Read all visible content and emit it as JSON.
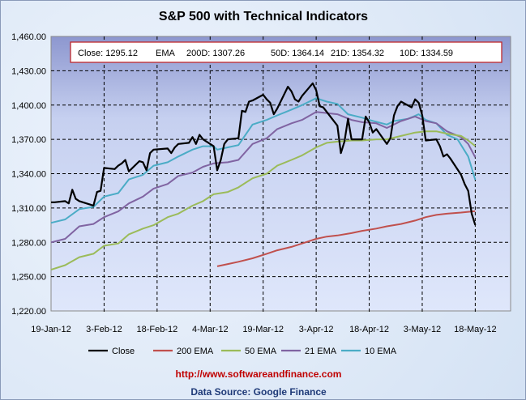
{
  "chart_data": {
    "type": "line",
    "title": "S&P 500 with Technical Indicators",
    "info_box": {
      "close": "Close: 1295.12",
      "ema": "EMA",
      "d200": "200D: 1307.26",
      "d50": "50D: 1364.14",
      "d21": "21D: 1354.32",
      "d10": "10D: 1334.59"
    },
    "ylim": [
      1220,
      1460
    ],
    "y_ticks": [
      "1,220.00",
      "1,250.00",
      "1,280.00",
      "1,310.00",
      "1,340.00",
      "1,370.00",
      "1,400.00",
      "1,430.00",
      "1,460.00"
    ],
    "x_start": "19-Jan-12",
    "x_days_range": [
      0,
      130
    ],
    "x_ticks": [
      {
        "day": 0,
        "label": "19-Jan-12"
      },
      {
        "day": 15,
        "label": "3-Feb-12"
      },
      {
        "day": 30,
        "label": "18-Feb-12"
      },
      {
        "day": 45,
        "label": "4-Mar-12"
      },
      {
        "day": 60,
        "label": "19-Mar-12"
      },
      {
        "day": 75,
        "label": "3-Apr-12"
      },
      {
        "day": 90,
        "label": "18-Apr-12"
      },
      {
        "day": 105,
        "label": "3-May-12"
      },
      {
        "day": 120,
        "label": "18-May-12"
      }
    ],
    "grid": true,
    "legend_position": "bottom",
    "series": [
      {
        "name": "Close",
        "color": "#000000",
        "points": [
          [
            0,
            1315
          ],
          [
            1,
            1315
          ],
          [
            4,
            1316
          ],
          [
            5,
            1314
          ],
          [
            6,
            1326
          ],
          [
            7,
            1318
          ],
          [
            8,
            1316
          ],
          [
            11,
            1313
          ],
          [
            12,
            1312
          ],
          [
            13,
            1324
          ],
          [
            14,
            1325
          ],
          [
            15,
            1345
          ],
          [
            18,
            1344
          ],
          [
            19,
            1347
          ],
          [
            20,
            1349
          ],
          [
            21,
            1352
          ],
          [
            22,
            1342
          ],
          [
            25,
            1351
          ],
          [
            26,
            1350
          ],
          [
            27,
            1343
          ],
          [
            28,
            1358
          ],
          [
            29,
            1361
          ],
          [
            33,
            1362
          ],
          [
            34,
            1358
          ],
          [
            35,
            1363
          ],
          [
            36,
            1366
          ],
          [
            39,
            1367
          ],
          [
            40,
            1372
          ],
          [
            41,
            1366
          ],
          [
            42,
            1374
          ],
          [
            43,
            1370
          ],
          [
            46,
            1364
          ],
          [
            47,
            1343
          ],
          [
            48,
            1352
          ],
          [
            49,
            1366
          ],
          [
            50,
            1370
          ],
          [
            53,
            1371
          ],
          [
            54,
            1395
          ],
          [
            55,
            1394
          ],
          [
            56,
            1403
          ],
          [
            57,
            1404
          ],
          [
            60,
            1409
          ],
          [
            61,
            1405
          ],
          [
            62,
            1402
          ],
          [
            63,
            1392
          ],
          [
            64,
            1397
          ],
          [
            67,
            1416
          ],
          [
            68,
            1412
          ],
          [
            69,
            1405
          ],
          [
            70,
            1403
          ],
          [
            71,
            1408
          ],
          [
            74,
            1419
          ],
          [
            75,
            1413
          ],
          [
            76,
            1399
          ],
          [
            77,
            1398
          ],
          [
            81,
            1382
          ],
          [
            82,
            1358
          ],
          [
            83,
            1368
          ],
          [
            84,
            1388
          ],
          [
            85,
            1370
          ],
          [
            88,
            1370
          ],
          [
            89,
            1390
          ],
          [
            90,
            1385
          ],
          [
            91,
            1376
          ],
          [
            92,
            1379
          ],
          [
            95,
            1366
          ],
          [
            96,
            1371
          ],
          [
            97,
            1391
          ],
          [
            98,
            1399
          ],
          [
            99,
            1403
          ],
          [
            102,
            1398
          ],
          [
            103,
            1405
          ],
          [
            104,
            1402
          ],
          [
            105,
            1391
          ],
          [
            106,
            1369
          ],
          [
            109,
            1370
          ],
          [
            110,
            1364
          ],
          [
            111,
            1355
          ],
          [
            112,
            1357
          ],
          [
            113,
            1353
          ],
          [
            116,
            1339
          ],
          [
            117,
            1331
          ],
          [
            118,
            1325
          ],
          [
            119,
            1305
          ],
          [
            120,
            1295.12
          ]
        ]
      },
      {
        "name": "200 EMA",
        "color": "#c0504d",
        "points": [
          [
            47,
            1259
          ],
          [
            50,
            1261
          ],
          [
            53,
            1263
          ],
          [
            57,
            1266
          ],
          [
            61,
            1270
          ],
          [
            64,
            1273
          ],
          [
            68,
            1276
          ],
          [
            71,
            1279
          ],
          [
            75,
            1283
          ],
          [
            78,
            1285
          ],
          [
            81,
            1286
          ],
          [
            85,
            1288
          ],
          [
            88,
            1290
          ],
          [
            92,
            1292
          ],
          [
            95,
            1294
          ],
          [
            99,
            1296
          ],
          [
            103,
            1299
          ],
          [
            106,
            1302
          ],
          [
            109,
            1304
          ],
          [
            112,
            1305
          ],
          [
            116,
            1306
          ],
          [
            120,
            1307.26
          ]
        ]
      },
      {
        "name": "50 EMA",
        "color": "#9bbb59",
        "points": [
          [
            0,
            1256
          ],
          [
            4,
            1260
          ],
          [
            8,
            1267
          ],
          [
            12,
            1270
          ],
          [
            15,
            1277
          ],
          [
            19,
            1279
          ],
          [
            22,
            1287
          ],
          [
            26,
            1292
          ],
          [
            29,
            1295
          ],
          [
            33,
            1302
          ],
          [
            36,
            1305
          ],
          [
            40,
            1312
          ],
          [
            43,
            1316
          ],
          [
            46,
            1322
          ],
          [
            50,
            1324
          ],
          [
            53,
            1328
          ],
          [
            57,
            1336
          ],
          [
            61,
            1340
          ],
          [
            64,
            1347
          ],
          [
            68,
            1352
          ],
          [
            71,
            1356
          ],
          [
            75,
            1363
          ],
          [
            78,
            1367
          ],
          [
            81,
            1368
          ],
          [
            85,
            1369
          ],
          [
            88,
            1369
          ],
          [
            92,
            1370
          ],
          [
            95,
            1370
          ],
          [
            99,
            1373
          ],
          [
            103,
            1376
          ],
          [
            106,
            1377
          ],
          [
            109,
            1377
          ],
          [
            112,
            1375
          ],
          [
            116,
            1373
          ],
          [
            118,
            1369
          ],
          [
            120,
            1364.14
          ]
        ]
      },
      {
        "name": "21 EMA",
        "color": "#8064a2",
        "points": [
          [
            0,
            1280
          ],
          [
            4,
            1283
          ],
          [
            8,
            1294
          ],
          [
            12,
            1296
          ],
          [
            15,
            1302
          ],
          [
            19,
            1307
          ],
          [
            22,
            1314
          ],
          [
            26,
            1320
          ],
          [
            29,
            1327
          ],
          [
            33,
            1331
          ],
          [
            36,
            1338
          ],
          [
            40,
            1341
          ],
          [
            43,
            1346
          ],
          [
            46,
            1349
          ],
          [
            50,
            1350
          ],
          [
            53,
            1352
          ],
          [
            57,
            1366
          ],
          [
            61,
            1371
          ],
          [
            64,
            1379
          ],
          [
            68,
            1384
          ],
          [
            71,
            1387
          ],
          [
            75,
            1394
          ],
          [
            78,
            1393
          ],
          [
            81,
            1392
          ],
          [
            85,
            1387
          ],
          [
            88,
            1385
          ],
          [
            92,
            1384
          ],
          [
            95,
            1380
          ],
          [
            99,
            1386
          ],
          [
            103,
            1390
          ],
          [
            106,
            1386
          ],
          [
            109,
            1384
          ],
          [
            112,
            1377
          ],
          [
            116,
            1372
          ],
          [
            118,
            1366
          ],
          [
            120,
            1354.32
          ]
        ]
      },
      {
        "name": "10 EMA",
        "color": "#4bacc6",
        "points": [
          [
            0,
            1297
          ],
          [
            4,
            1300
          ],
          [
            8,
            1309
          ],
          [
            12,
            1311
          ],
          [
            15,
            1320
          ],
          [
            19,
            1323
          ],
          [
            22,
            1335
          ],
          [
            26,
            1339
          ],
          [
            29,
            1347
          ],
          [
            33,
            1350
          ],
          [
            36,
            1355
          ],
          [
            40,
            1361
          ],
          [
            43,
            1364
          ],
          [
            46,
            1364
          ],
          [
            47,
            1361
          ],
          [
            50,
            1363
          ],
          [
            53,
            1365
          ],
          [
            57,
            1383
          ],
          [
            61,
            1387
          ],
          [
            64,
            1391
          ],
          [
            68,
            1396
          ],
          [
            71,
            1400
          ],
          [
            75,
            1406
          ],
          [
            78,
            1403
          ],
          [
            81,
            1401
          ],
          [
            84,
            1392
          ],
          [
            88,
            1389
          ],
          [
            90,
            1387
          ],
          [
            95,
            1383
          ],
          [
            97,
            1386
          ],
          [
            101,
            1388
          ],
          [
            104,
            1392
          ],
          [
            106,
            1387
          ],
          [
            109,
            1384
          ],
          [
            112,
            1374
          ],
          [
            115,
            1370
          ],
          [
            118,
            1355
          ],
          [
            120,
            1334.59
          ]
        ]
      }
    ],
    "footer": {
      "url": "http://www.softwareandfinance.com",
      "source": "Data Source: Google Finance"
    }
  }
}
